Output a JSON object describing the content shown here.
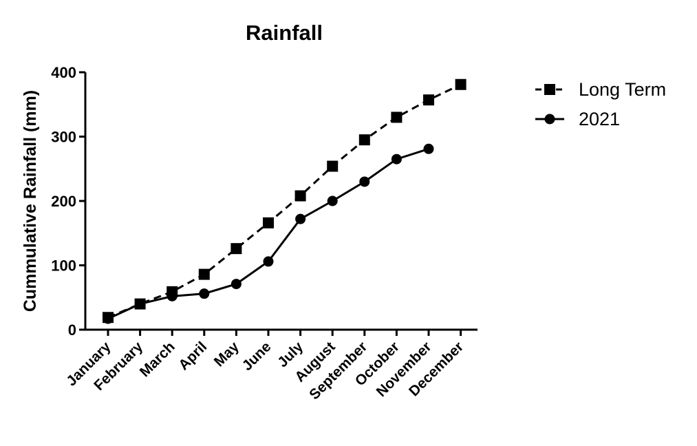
{
  "chart_data": {
    "type": "line",
    "title": "Rainfall",
    "xlabel": "",
    "ylabel": "Cummulative Rainfall (mm)",
    "categories": [
      "January",
      "February",
      "March",
      "April",
      "May",
      "June",
      "July",
      "August",
      "September",
      "October",
      "November",
      "December"
    ],
    "ylim": [
      0,
      400
    ],
    "yticks": [
      0,
      100,
      200,
      300,
      400
    ],
    "grid": false,
    "legend_position": "top-right",
    "series": [
      {
        "name": "Long Term",
        "marker": "square",
        "line": "dashed",
        "color": "#000000",
        "values": [
          19,
          40,
          59,
          86,
          126,
          166,
          208,
          254,
          295,
          330,
          357,
          381
        ]
      },
      {
        "name": "2021",
        "marker": "circle",
        "line": "solid",
        "color": "#000000",
        "values": [
          17,
          40,
          52,
          56,
          71,
          106,
          172,
          200,
          230,
          265,
          281,
          null
        ]
      }
    ]
  }
}
